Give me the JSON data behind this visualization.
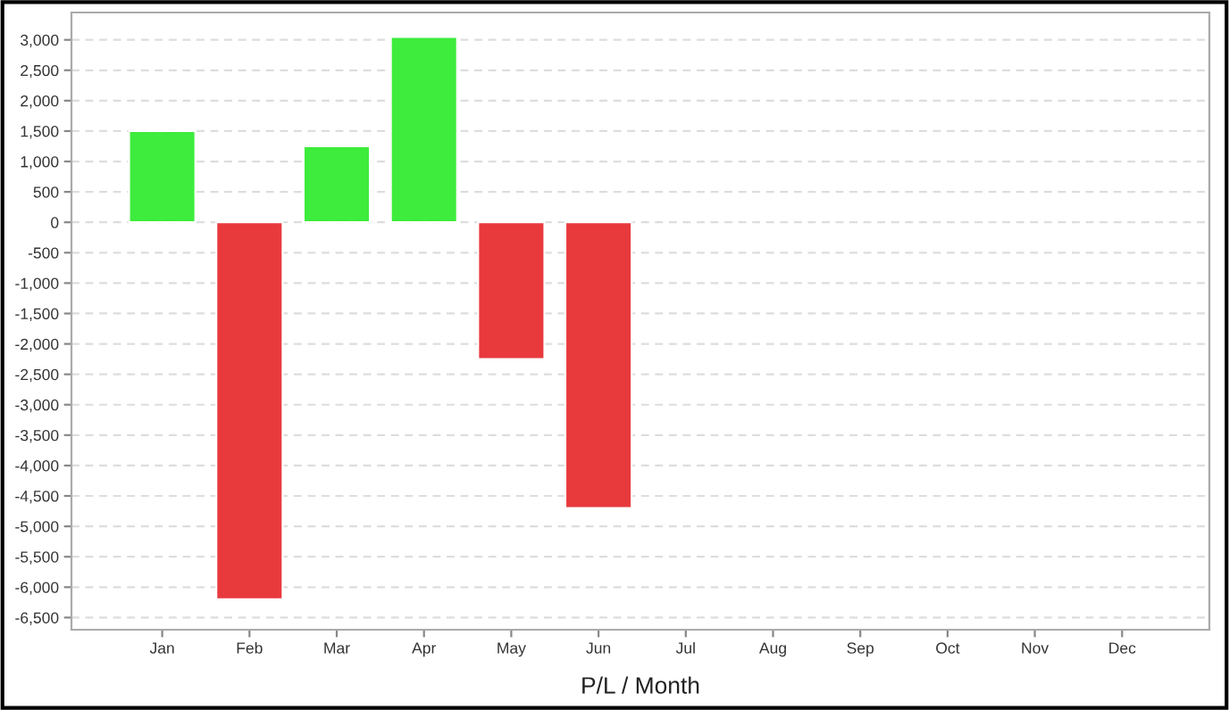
{
  "chart_data": {
    "type": "bar",
    "xlabel": "P/L / Month",
    "categories": [
      "Jan",
      "Feb",
      "Mar",
      "Apr",
      "May",
      "Jun",
      "Jul",
      "Aug",
      "Sep",
      "Oct",
      "Nov",
      "Dec"
    ],
    "values": [
      1500,
      -6200,
      1250,
      3050,
      -2250,
      -4700,
      null,
      null,
      null,
      null,
      null,
      null
    ],
    "colors": [
      "#3dec3d",
      "#e8393d",
      "#3dec3d",
      "#3dec3d",
      "#e8393d",
      "#e8393d",
      "#3dec3d",
      "#3dec3d",
      "#3dec3d",
      "#3dec3d",
      "#3dec3d",
      "#3dec3d"
    ],
    "ylim": [
      -6700,
      3450
    ],
    "yticks": [
      {
        "value": -6500,
        "label": "-6,500"
      },
      {
        "value": -6000,
        "label": "-6,000"
      },
      {
        "value": -5500,
        "label": "-5,500"
      },
      {
        "value": -5000,
        "label": "-5,000"
      },
      {
        "value": -4500,
        "label": "-4,500"
      },
      {
        "value": -4000,
        "label": "-4,000"
      },
      {
        "value": -3500,
        "label": "-3,500"
      },
      {
        "value": -3000,
        "label": "-3,000"
      },
      {
        "value": -2500,
        "label": "-2,500"
      },
      {
        "value": -2000,
        "label": "-2,000"
      },
      {
        "value": -1500,
        "label": "-1,500"
      },
      {
        "value": -1000,
        "label": "-1,000"
      },
      {
        "value": -500,
        "label": "-500"
      },
      0,
      500,
      {
        "value": 1000,
        "label": "1,000"
      },
      {
        "value": 1500,
        "label": "1,500"
      },
      {
        "value": 2000,
        "label": "2,000"
      },
      {
        "value": 2500,
        "label": "2,500"
      },
      {
        "value": 3000,
        "label": "3,000"
      }
    ],
    "grid": "y"
  }
}
